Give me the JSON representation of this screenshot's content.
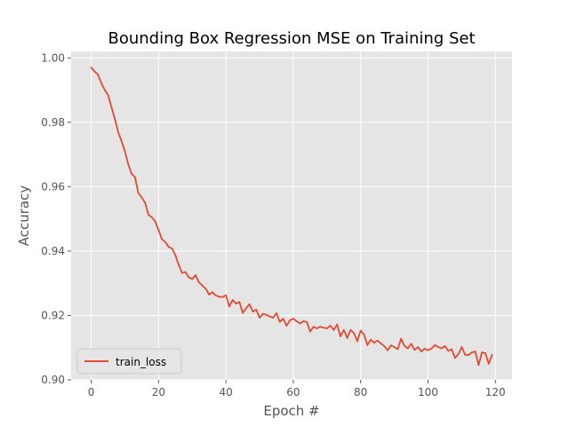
{
  "chart_data": {
    "type": "line",
    "title": "Bounding Box Regression MSE on Training Set",
    "xlabel": "Epoch #",
    "ylabel": "Accuracy",
    "xlim": [
      -5.95,
      124.95
    ],
    "ylim": [
      0.9,
      1.002
    ],
    "xticks": [
      0,
      20,
      40,
      60,
      80,
      100,
      120
    ],
    "yticks": [
      0.9,
      0.92,
      0.94,
      0.96,
      0.98,
      1.0
    ],
    "ytick_labels": [
      "0.90",
      "0.92",
      "0.94",
      "0.96",
      "0.98",
      "1.00"
    ],
    "grid": true,
    "legend_position": "lower-left",
    "series": [
      {
        "name": "train_loss",
        "color": "#E24A33",
        "x": [
          0,
          1,
          2,
          3,
          4,
          5,
          6,
          7,
          8,
          9,
          10,
          11,
          12,
          13,
          14,
          15,
          16,
          17,
          18,
          19,
          20,
          21,
          22,
          23,
          24,
          25,
          26,
          27,
          28,
          29,
          30,
          31,
          32,
          33,
          34,
          35,
          36,
          37,
          38,
          39,
          40,
          41,
          42,
          43,
          44,
          45,
          46,
          47,
          48,
          49,
          50,
          51,
          52,
          53,
          54,
          55,
          56,
          57,
          58,
          59,
          60,
          61,
          62,
          63,
          64,
          65,
          66,
          67,
          68,
          69,
          70,
          71,
          72,
          73,
          74,
          75,
          76,
          77,
          78,
          79,
          80,
          81,
          82,
          83,
          84,
          85,
          86,
          87,
          88,
          89,
          90,
          91,
          92,
          93,
          94,
          95,
          96,
          97,
          98,
          99,
          100,
          101,
          102,
          103,
          104,
          105,
          106,
          107,
          108,
          109,
          110,
          111,
          112,
          113,
          114,
          115,
          116,
          117,
          118,
          119
        ],
        "values": [
          0.997,
          0.9958,
          0.9948,
          0.9922,
          0.9901,
          0.9885,
          0.9848,
          0.9812,
          0.977,
          0.9742,
          0.971,
          0.967,
          0.964,
          0.963,
          0.958,
          0.9567,
          0.955,
          0.9513,
          0.9505,
          0.9492,
          0.9465,
          0.9437,
          0.9428,
          0.9413,
          0.9408,
          0.9387,
          0.9357,
          0.9332,
          0.9335,
          0.9318,
          0.9313,
          0.9325,
          0.9303,
          0.9293,
          0.9283,
          0.9265,
          0.9272,
          0.9262,
          0.9258,
          0.9257,
          0.9263,
          0.9228,
          0.9248,
          0.9237,
          0.9242,
          0.9208,
          0.9222,
          0.9235,
          0.9212,
          0.9218,
          0.9193,
          0.9205,
          0.9202,
          0.9197,
          0.9193,
          0.9207,
          0.918,
          0.919,
          0.9168,
          0.9185,
          0.919,
          0.9182,
          0.9175,
          0.9182,
          0.918,
          0.915,
          0.9165,
          0.916,
          0.9165,
          0.9162,
          0.916,
          0.9168,
          0.9155,
          0.9172,
          0.9135,
          0.9155,
          0.913,
          0.9155,
          0.9145,
          0.912,
          0.9153,
          0.914,
          0.9108,
          0.9125,
          0.9115,
          0.9122,
          0.9113,
          0.9105,
          0.9092,
          0.9107,
          0.9102,
          0.9095,
          0.9128,
          0.9105,
          0.9098,
          0.9112,
          0.9093,
          0.9102,
          0.9088,
          0.9097,
          0.9092,
          0.9097,
          0.9108,
          0.9102,
          0.9098,
          0.9105,
          0.909,
          0.9095,
          0.9068,
          0.908,
          0.9102,
          0.9078,
          0.9077,
          0.9085,
          0.9088,
          0.9046,
          0.9085,
          0.9083,
          0.905,
          0.9078
        ]
      }
    ]
  }
}
